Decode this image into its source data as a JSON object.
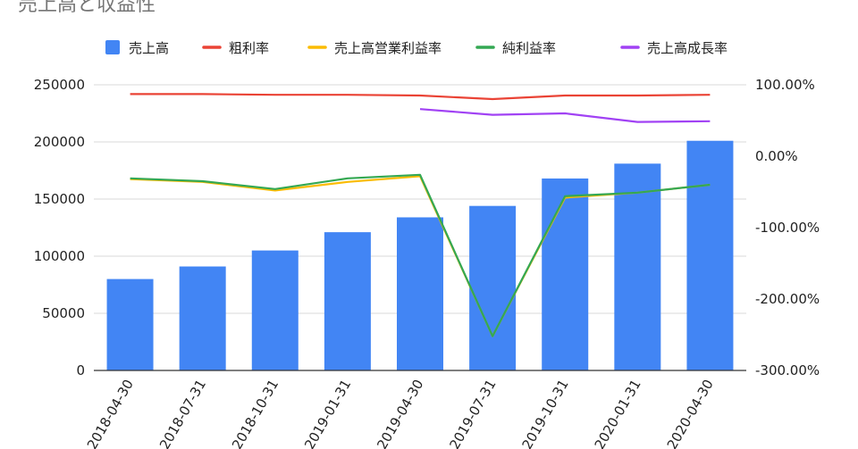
{
  "chart_data": {
    "type": "bar",
    "title": "売上高と収益性",
    "categories": [
      "2018-04-30",
      "2018-07-31",
      "2018-10-31",
      "2019-01-31",
      "2019-04-30",
      "2019-07-31",
      "2019-10-31",
      "2020-01-31",
      "2020-04-30"
    ],
    "series": [
      {
        "name": "売上高",
        "type": "bar",
        "axis": "left",
        "color": "#4285f4",
        "values": [
          80000,
          91000,
          105000,
          121000,
          134000,
          144000,
          168000,
          181000,
          201000
        ]
      },
      {
        "name": "粗利率",
        "type": "line",
        "axis": "right",
        "color": "#ea4335",
        "values": [
          87,
          87,
          86,
          86,
          85,
          80,
          85,
          85,
          86
        ]
      },
      {
        "name": "売上高営業利益率",
        "type": "line",
        "axis": "right",
        "color": "#fbbc04",
        "values": [
          -32,
          -36,
          -48,
          -36,
          -28,
          -252,
          -58,
          -51,
          -40
        ]
      },
      {
        "name": "純利益率",
        "type": "line",
        "axis": "right",
        "color": "#34a853",
        "values": [
          -31,
          -35,
          -46,
          -31,
          -26,
          -252,
          -56,
          -51,
          -40
        ]
      },
      {
        "name": "売上高成長率",
        "type": "line",
        "axis": "right",
        "color": "#a142f4",
        "values": [
          null,
          null,
          null,
          null,
          66,
          58,
          60,
          48,
          49
        ]
      }
    ],
    "left_axis": {
      "range": [
        0,
        250000
      ],
      "ticks": [
        "0",
        "50000",
        "100000",
        "150000",
        "200000",
        "250000"
      ]
    },
    "right_axis": {
      "range": [
        -300,
        100
      ],
      "ticks": [
        "-300.00%",
        "-200.00%",
        "-100.00%",
        "0.00%",
        "100.00%"
      ]
    },
    "grid": true,
    "legend": "top"
  }
}
